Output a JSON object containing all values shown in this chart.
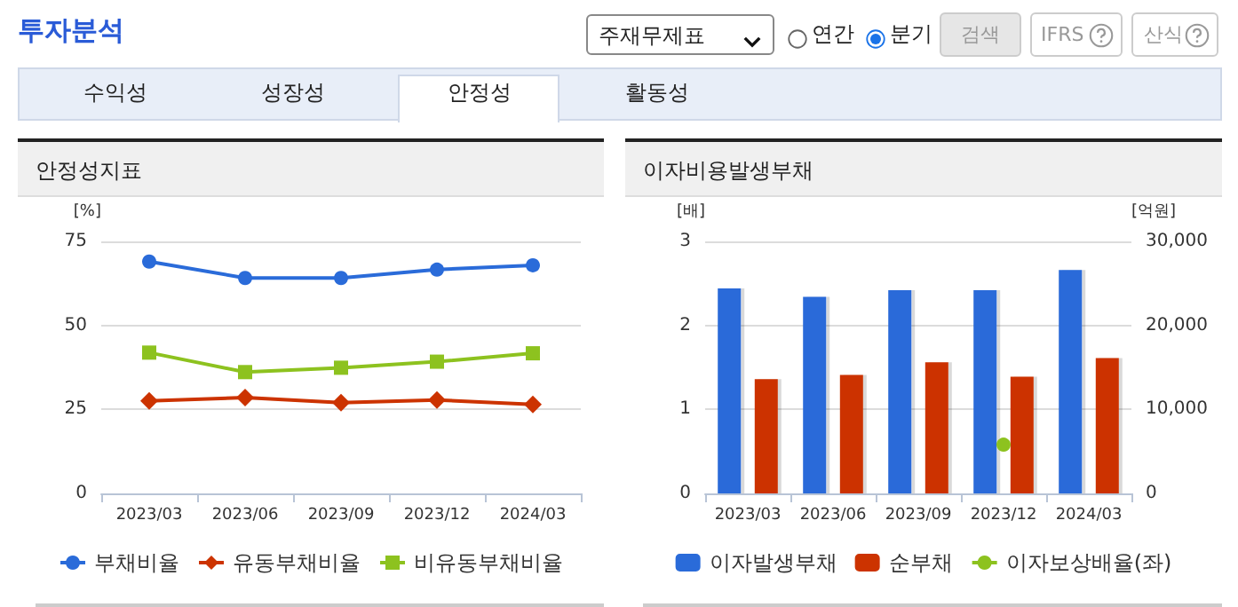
{
  "chart_data": [
    {
      "type": "other",
      "title": "투자분석",
      "annotations": [
        "주재무제표",
        "연간",
        "분기",
        "검색",
        "IFRS",
        "산식",
        "수익성",
        "성장성",
        "안정성",
        "활동성"
      ]
    },
    {
      "type": "line",
      "title": "안정성지표",
      "ylabel": "[%]",
      "categories": [
        "2023/03",
        "2023/06",
        "2023/09",
        "2023/12",
        "2024/03"
      ],
      "series": [
        {
          "name": "부채비율",
          "color": "#2a6bd9",
          "marker": "circle",
          "values": [
            69.0,
            64.1,
            64.1,
            66.6,
            67.9
          ]
        },
        {
          "name": "유동부채비율",
          "color": "#cc3300",
          "marker": "diamond",
          "values": [
            27.5,
            28.5,
            27.0,
            27.8,
            26.5
          ]
        },
        {
          "name": "비유동부채비율",
          "color": "#8dc21f",
          "marker": "square",
          "values": [
            41.9,
            36.1,
            37.4,
            39.2,
            41.7
          ]
        }
      ],
      "ylim": [
        0,
        75
      ],
      "yticks": [
        0,
        25,
        50,
        75
      ],
      "grid": "y",
      "legend": "bottom"
    },
    {
      "type": "bar",
      "title": "이자비용발생부채",
      "ylabel": "[배]",
      "y2label": "[억원]",
      "categories": [
        "2023/03",
        "2023/06",
        "2023/09",
        "2023/12",
        "2024/03"
      ],
      "series": [
        {
          "name": "이자발생부채",
          "color": "#2a6bd9",
          "axis": "y2",
          "values": [
            24400,
            23400,
            24200,
            24200,
            26600
          ]
        },
        {
          "name": "순부채",
          "color": "#cc3300",
          "axis": "y2",
          "values": [
            13600,
            14100,
            15600,
            13900,
            16100
          ]
        },
        {
          "name": "이자보상배율(좌)",
          "type": "line",
          "color": "#8dc21f",
          "marker": "circle",
          "values": [
            null,
            null,
            null,
            0.58,
            null
          ]
        }
      ],
      "ylim": [
        0,
        3
      ],
      "yticks": [
        0,
        1,
        2,
        3
      ],
      "y2lim": [
        0,
        30000
      ],
      "y2ticks": [
        0,
        {
          "value": 10000,
          "label": "10,000"
        },
        {
          "value": 20000,
          "label": "20,000"
        },
        {
          "value": 30000,
          "label": "30,000"
        }
      ],
      "grid": "y",
      "legend": "bottom"
    }
  ]
}
